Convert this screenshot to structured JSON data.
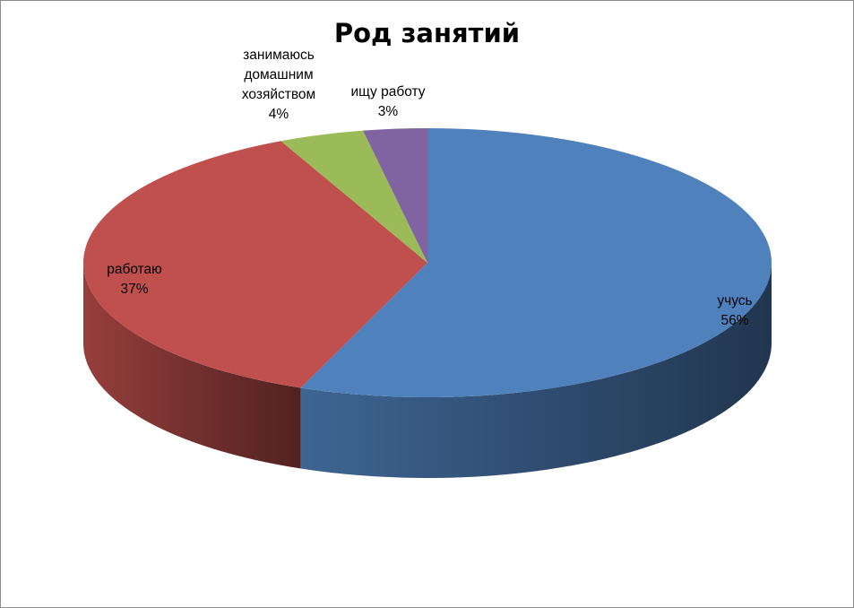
{
  "chart_data": {
    "type": "pie",
    "title": "Род занятий",
    "slices": [
      {
        "label": [
          "учусь"
        ],
        "percent_label": "56%",
        "value": 56,
        "color": "#4f81bd"
      },
      {
        "label": [
          "работаю"
        ],
        "percent_label": "37%",
        "value": 37,
        "color": "#c0504d"
      },
      {
        "label": [
          "занимаюсь",
          "домашним",
          "хозяйством"
        ],
        "percent_label": "4%",
        "value": 4,
        "color": "#9bbb59"
      },
      {
        "label": [
          "ищу работу"
        ],
        "percent_label": "3%",
        "value": 3,
        "color": "#8064a2"
      }
    ],
    "style": "3d",
    "legend": "none"
  }
}
